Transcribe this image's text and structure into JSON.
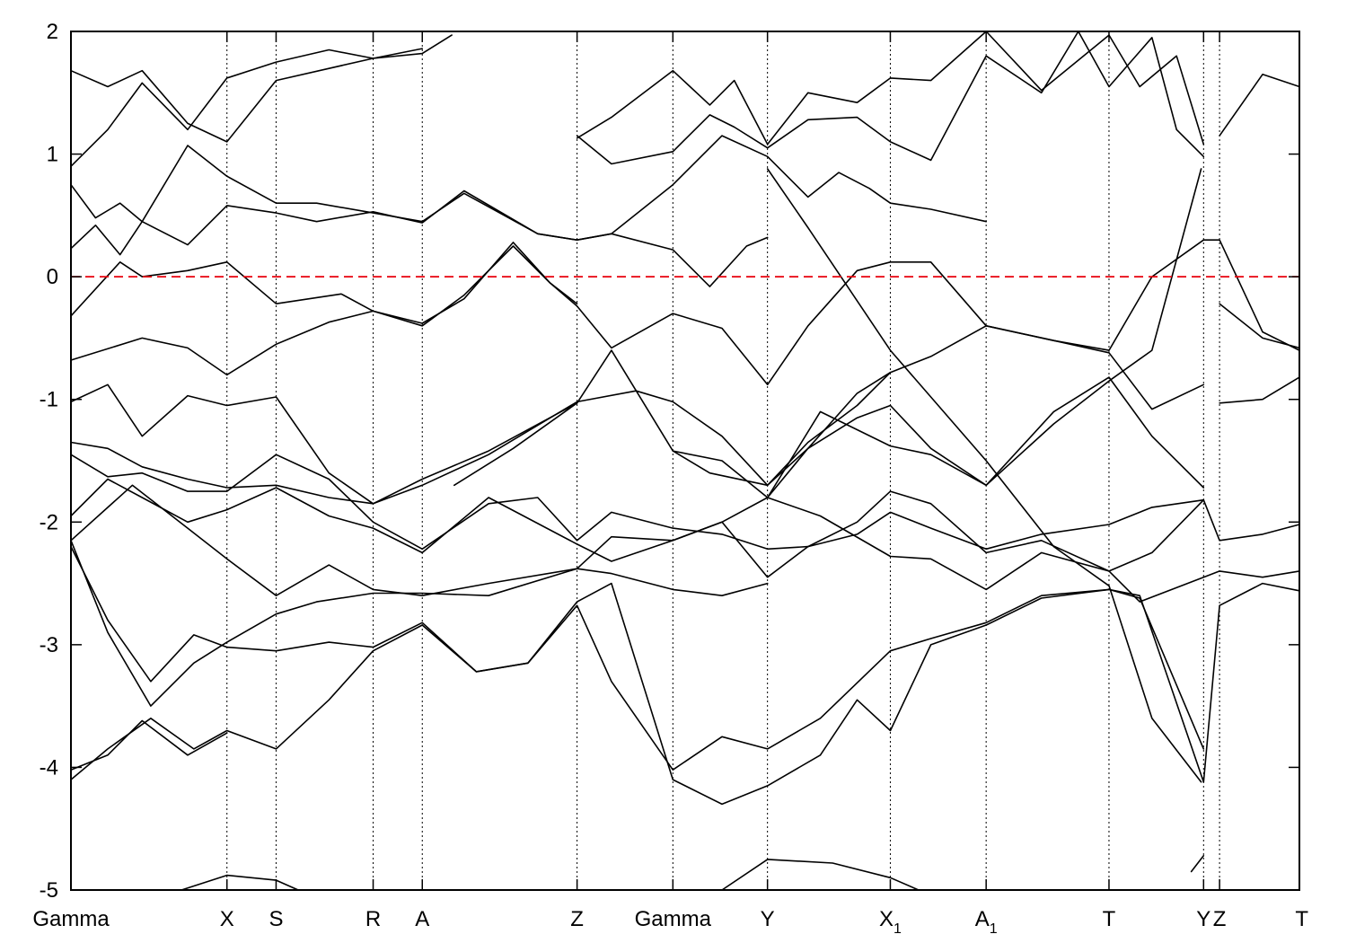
{
  "chart_data": {
    "type": "line",
    "title": "",
    "xlabel": "",
    "ylabel": "",
    "ylim": [
      -5,
      2
    ],
    "yticks": [
      -5,
      -4,
      -3,
      -2,
      -1,
      0,
      1,
      2
    ],
    "ytick_labels": [
      "-5",
      "-4",
      "-3",
      "-2",
      "-1",
      "0",
      "1",
      "2"
    ],
    "fermi_level": 0,
    "fermi_color": "#e8000b",
    "line_color": "#000000",
    "grid": false,
    "xlim": [
      0,
      1
    ],
    "high_symmetry_points": [
      {
        "pos": 0.0,
        "label": "Gamma",
        "sub": ""
      },
      {
        "pos": 0.127,
        "label": "X",
        "sub": ""
      },
      {
        "pos": 0.167,
        "label": "S",
        "sub": ""
      },
      {
        "pos": 0.246,
        "label": "R",
        "sub": ""
      },
      {
        "pos": 0.286,
        "label": "A",
        "sub": ""
      },
      {
        "pos": 0.412,
        "label": "Z",
        "sub": ""
      },
      {
        "pos": 0.49,
        "label": "Gamma",
        "sub": ""
      },
      {
        "pos": 0.567,
        "label": "Y",
        "sub": ""
      },
      {
        "pos": 0.667,
        "label": "X",
        "sub": "1"
      },
      {
        "pos": 0.745,
        "label": "A",
        "sub": "1"
      },
      {
        "pos": 0.845,
        "label": "T",
        "sub": ""
      },
      {
        "pos": 0.922,
        "label": "Y",
        "sub": ""
      },
      {
        "pos": 0.935,
        "label": "Z",
        "sub": ""
      },
      {
        "pos": 1.0,
        "label": "T",
        "sub": ""
      }
    ],
    "series": [
      {
        "x": [
          0.0,
          0.03,
          0.058,
          0.095,
          0.127,
          0.167,
          0.246,
          0.286
        ],
        "y": [
          1.68,
          1.55,
          1.68,
          1.25,
          1.1,
          1.6,
          1.78,
          1.86
        ]
      },
      {
        "x": [
          0.0,
          0.03,
          0.058,
          0.095,
          0.127,
          0.167,
          0.21,
          0.246,
          0.286,
          0.31
        ],
        "y": [
          0.9,
          1.2,
          1.58,
          1.2,
          1.62,
          1.75,
          1.85,
          1.78,
          1.82,
          1.97
        ]
      },
      {
        "x": [
          0.0,
          0.02,
          0.04,
          0.058,
          0.095,
          0.127,
          0.167,
          0.2,
          0.246,
          0.286,
          0.32,
          0.38,
          0.412,
          0.44,
          0.49,
          0.52,
          0.55,
          0.567
        ],
        "y": [
          0.75,
          0.48,
          0.6,
          0.45,
          1.07,
          0.82,
          0.6,
          0.6,
          0.52,
          0.45,
          0.68,
          0.35,
          0.3,
          0.35,
          0.22,
          -0.08,
          0.25,
          0.32
        ]
      },
      {
        "x": [
          0.0,
          0.02,
          0.04,
          0.058,
          0.095,
          0.127,
          0.167,
          0.2,
          0.246,
          0.286,
          0.32,
          0.38,
          0.412,
          0.44,
          0.49,
          0.53,
          0.567,
          0.6,
          0.625,
          0.65,
          0.667,
          0.7,
          0.745
        ],
        "y": [
          0.23,
          0.42,
          0.18,
          0.45,
          0.26,
          0.58,
          0.52,
          0.45,
          0.53,
          0.44,
          0.7,
          0.35,
          0.3,
          0.35,
          0.75,
          1.15,
          0.98,
          0.65,
          0.85,
          0.72,
          0.6,
          0.55,
          0.45
        ]
      },
      {
        "x": [
          0.0,
          0.04,
          0.058,
          0.095,
          0.127,
          0.167,
          0.22,
          0.246,
          0.286,
          0.32,
          0.36,
          0.39,
          0.412
        ],
        "y": [
          -0.32,
          0.12,
          0.0,
          0.05,
          0.12,
          -0.22,
          -0.14,
          -0.28,
          -0.4,
          -0.15,
          0.25,
          -0.05,
          -0.22
        ]
      },
      {
        "x": [
          0.0,
          0.058,
          0.095,
          0.127,
          0.167,
          0.21,
          0.246,
          0.286,
          0.32,
          0.36,
          0.39,
          0.412,
          0.44,
          0.49,
          0.53,
          0.567,
          0.6,
          0.64,
          0.667,
          0.7,
          0.745,
          0.8,
          0.845,
          0.88,
          0.922,
          0.935,
          0.97,
          1.0
        ],
        "y": [
          -0.68,
          -0.5,
          -0.58,
          -0.8,
          -0.55,
          -0.37,
          -0.28,
          -0.38,
          -0.18,
          0.28,
          -0.05,
          -0.24,
          -0.58,
          -0.3,
          -0.42,
          -0.88,
          -0.4,
          0.05,
          0.12,
          0.12,
          -0.4,
          -0.52,
          -0.6,
          0.0,
          0.3,
          0.3,
          -0.45,
          -0.6
        ]
      },
      {
        "x": [
          0.0,
          0.03,
          0.058,
          0.095,
          0.127,
          0.167,
          0.21,
          0.246,
          0.286,
          0.34,
          0.412,
          0.46,
          0.49,
          0.53,
          0.567,
          0.6,
          0.64,
          0.667,
          0.7,
          0.745,
          0.8,
          0.845,
          0.88,
          0.922
        ],
        "y": [
          -1.02,
          -0.88,
          -1.3,
          -0.97,
          -1.05,
          -0.98,
          -1.6,
          -1.85,
          -1.7,
          -1.45,
          -1.02,
          -0.93,
          -1.02,
          -1.3,
          -1.7,
          -1.35,
          -1.05,
          -0.78,
          -0.65,
          -0.4,
          -0.52,
          -0.62,
          -1.08,
          -0.88
        ]
      },
      {
        "x": [
          0.0,
          0.03,
          0.058,
          0.095,
          0.127,
          0.167,
          0.21,
          0.246,
          0.286,
          0.34,
          0.412,
          0.44,
          0.49,
          0.53,
          0.567,
          0.61,
          0.667,
          0.7,
          0.745,
          0.8,
          0.845,
          0.88,
          0.922
        ],
        "y": [
          -1.35,
          -1.4,
          -1.55,
          -1.65,
          -1.72,
          -1.7,
          -1.8,
          -1.85,
          -1.65,
          -1.42,
          -1.03,
          -0.6,
          -1.42,
          -1.5,
          -1.8,
          -1.1,
          -1.38,
          -1.45,
          -1.7,
          -1.1,
          -0.82,
          -1.3,
          -1.72
        ]
      },
      {
        "x": [
          0.0,
          0.03,
          0.058,
          0.095,
          0.127,
          0.167,
          0.21,
          0.246,
          0.286,
          0.34,
          0.38,
          0.412,
          0.44,
          0.49,
          0.53,
          0.567,
          0.6,
          0.64,
          0.667,
          0.7,
          0.745,
          0.79,
          0.845,
          0.88,
          0.922,
          0.935,
          0.97,
          1.0
        ],
        "y": [
          -1.45,
          -1.63,
          -1.6,
          -1.75,
          -1.75,
          -1.45,
          -1.65,
          -2.0,
          -2.22,
          -1.85,
          -1.8,
          -2.15,
          -1.92,
          -2.05,
          -2.1,
          -2.22,
          -2.2,
          -2.1,
          -1.92,
          -2.05,
          -2.22,
          -2.1,
          -2.02,
          -1.88,
          -1.82,
          -2.15,
          -2.1,
          -2.02
        ]
      },
      {
        "x": [
          0.0,
          0.03,
          0.058,
          0.095,
          0.127,
          0.167,
          0.21,
          0.246,
          0.286,
          0.34,
          0.412,
          0.44,
          0.49,
          0.53,
          0.567,
          0.6,
          0.64,
          0.667,
          0.7,
          0.745,
          0.79,
          0.845,
          0.88,
          0.922
        ],
        "y": [
          -1.95,
          -1.65,
          -1.8,
          -2.0,
          -1.9,
          -1.72,
          -1.95,
          -2.05,
          -2.25,
          -1.8,
          -2.18,
          -2.32,
          -2.15,
          -2.0,
          -2.45,
          -2.2,
          -2.0,
          -1.75,
          -1.85,
          -2.25,
          -2.15,
          -2.4,
          -2.25,
          -1.82
        ]
      },
      {
        "x": [
          0.0,
          0.05,
          0.095,
          0.127,
          0.167,
          0.21,
          0.246,
          0.286,
          0.34,
          0.412,
          0.44,
          0.49,
          0.53,
          0.567,
          0.61,
          0.667,
          0.7,
          0.745,
          0.79,
          0.845,
          0.87,
          0.922,
          0.935,
          0.97,
          1.0
        ],
        "y": [
          -2.15,
          -1.7,
          -2.05,
          -2.3,
          -2.6,
          -2.35,
          -2.55,
          -2.6,
          -2.5,
          -2.38,
          -2.12,
          -2.15,
          -2.0,
          -1.8,
          -1.95,
          -2.28,
          -2.3,
          -2.55,
          -2.25,
          -2.4,
          -2.65,
          -2.45,
          -2.4,
          -2.45,
          -2.4
        ]
      },
      {
        "x": [
          0.0,
          0.03,
          0.065,
          0.1,
          0.127,
          0.167,
          0.2,
          0.246,
          0.286,
          0.34,
          0.412,
          0.44,
          0.49,
          0.53,
          0.567
        ],
        "y": [
          -2.15,
          -2.9,
          -3.5,
          -3.15,
          -2.98,
          -2.75,
          -2.65,
          -2.58,
          -2.58,
          -2.6,
          -2.38,
          -2.42,
          -2.55,
          -2.6,
          -2.5
        ]
      },
      {
        "x": [
          0.0,
          0.03,
          0.065,
          0.1,
          0.127,
          0.167,
          0.21,
          0.246,
          0.286,
          0.33,
          0.372,
          0.412,
          0.44,
          0.49,
          0.53,
          0.567,
          0.61,
          0.667,
          0.7,
          0.745,
          0.79,
          0.845,
          0.87,
          0.922,
          0.935,
          0.97,
          1.0
        ],
        "y": [
          -2.2,
          -2.8,
          -3.3,
          -2.92,
          -3.02,
          -3.05,
          -2.98,
          -3.02,
          -2.82,
          -3.22,
          -3.15,
          -2.68,
          -3.3,
          -4.02,
          -3.75,
          -3.85,
          -3.6,
          -3.05,
          -2.95,
          -2.82,
          -2.6,
          -2.55,
          -2.6,
          -4.12,
          -2.68,
          -2.5,
          -2.56
        ]
      },
      {
        "x": [
          0.0,
          0.03,
          0.065,
          0.1,
          0.127,
          0.167,
          0.21,
          0.246,
          0.286,
          0.33,
          0.372,
          0.412,
          0.44,
          0.49,
          0.53,
          0.567,
          0.61,
          0.64,
          0.667,
          0.7,
          0.745,
          0.79,
          0.845,
          0.87,
          0.922
        ],
        "y": [
          -4.1,
          -3.85,
          -3.6,
          -3.85,
          -3.7,
          -3.85,
          -3.45,
          -3.05,
          -2.84,
          -3.22,
          -3.15,
          -2.65,
          -2.5,
          -4.1,
          -4.3,
          -4.15,
          -3.9,
          -3.45,
          -3.7,
          -3.0,
          -2.84,
          -2.62,
          -2.55,
          -2.62,
          -3.85
        ]
      },
      {
        "x": [
          0.0,
          0.03,
          0.058,
          0.095,
          0.127
        ],
        "y": [
          -4.02,
          -3.9,
          -3.62,
          -3.9,
          -3.72
        ]
      },
      {
        "x": [
          0.09,
          0.127,
          0.167,
          0.185
        ],
        "y": [
          -5.0,
          -4.88,
          -4.92,
          -5.0
        ]
      },
      {
        "x": [
          0.53,
          0.567,
          0.62,
          0.667,
          0.69
        ],
        "y": [
          -5.0,
          -4.75,
          -4.78,
          -4.9,
          -5.0
        ]
      },
      {
        "x": [
          0.912,
          0.922
        ],
        "y": [
          -4.85,
          -4.72
        ]
      },
      {
        "x": [
          0.412,
          0.44,
          0.49,
          0.52,
          0.54,
          0.567,
          0.6,
          0.64,
          0.667,
          0.7,
          0.745,
          0.79,
          0.845,
          0.87,
          0.9,
          0.922
        ],
        "y": [
          1.13,
          1.3,
          1.68,
          1.4,
          1.6,
          1.08,
          1.5,
          1.42,
          1.62,
          1.6,
          2.0,
          1.52,
          1.97,
          1.55,
          1.8,
          1.08
        ]
      },
      {
        "x": [
          0.412,
          0.44,
          0.49,
          0.52,
          0.54,
          0.567,
          0.6,
          0.64,
          0.667,
          0.7,
          0.745,
          0.79,
          0.82,
          0.845,
          0.88,
          0.9,
          0.922
        ],
        "y": [
          1.15,
          0.92,
          1.02,
          1.32,
          1.22,
          1.05,
          1.28,
          1.3,
          1.1,
          0.95,
          1.8,
          1.5,
          2.0,
          1.55,
          1.95,
          1.2,
          0.98
        ]
      },
      {
        "x": [
          0.935,
          0.97,
          1.0
        ],
        "y": [
          1.15,
          1.65,
          1.55
        ]
      },
      {
        "x": [
          0.935,
          0.97,
          1.0
        ],
        "y": [
          -0.22,
          -0.5,
          -0.58
        ]
      },
      {
        "x": [
          0.935,
          0.97,
          1.0
        ],
        "y": [
          -1.03,
          -1.0,
          -0.82
        ]
      },
      {
        "x": [
          0.312,
          0.36,
          0.412
        ],
        "y": [
          -1.7,
          -1.4,
          -1.03
        ]
      },
      {
        "x": [
          0.567,
          0.6,
          0.64,
          0.667,
          0.7,
          0.745,
          0.8,
          0.845,
          0.88,
          0.92
        ],
        "y": [
          -1.8,
          -1.4,
          -1.15,
          -1.05,
          -1.4,
          -1.7,
          -1.2,
          -0.85,
          -0.6,
          0.88
        ]
      },
      {
        "x": [
          0.49,
          0.52,
          0.567,
          0.6,
          0.64,
          0.667
        ],
        "y": [
          -1.42,
          -1.6,
          -1.7,
          -1.4,
          -0.95,
          -0.78
        ]
      },
      {
        "x": [
          0.567,
          0.6,
          0.667,
          0.745,
          0.8,
          0.845,
          0.88,
          0.92
        ],
        "y": [
          0.88,
          0.4,
          -0.6,
          -1.5,
          -2.2,
          -2.52,
          -3.6,
          -4.12
        ]
      }
    ]
  }
}
